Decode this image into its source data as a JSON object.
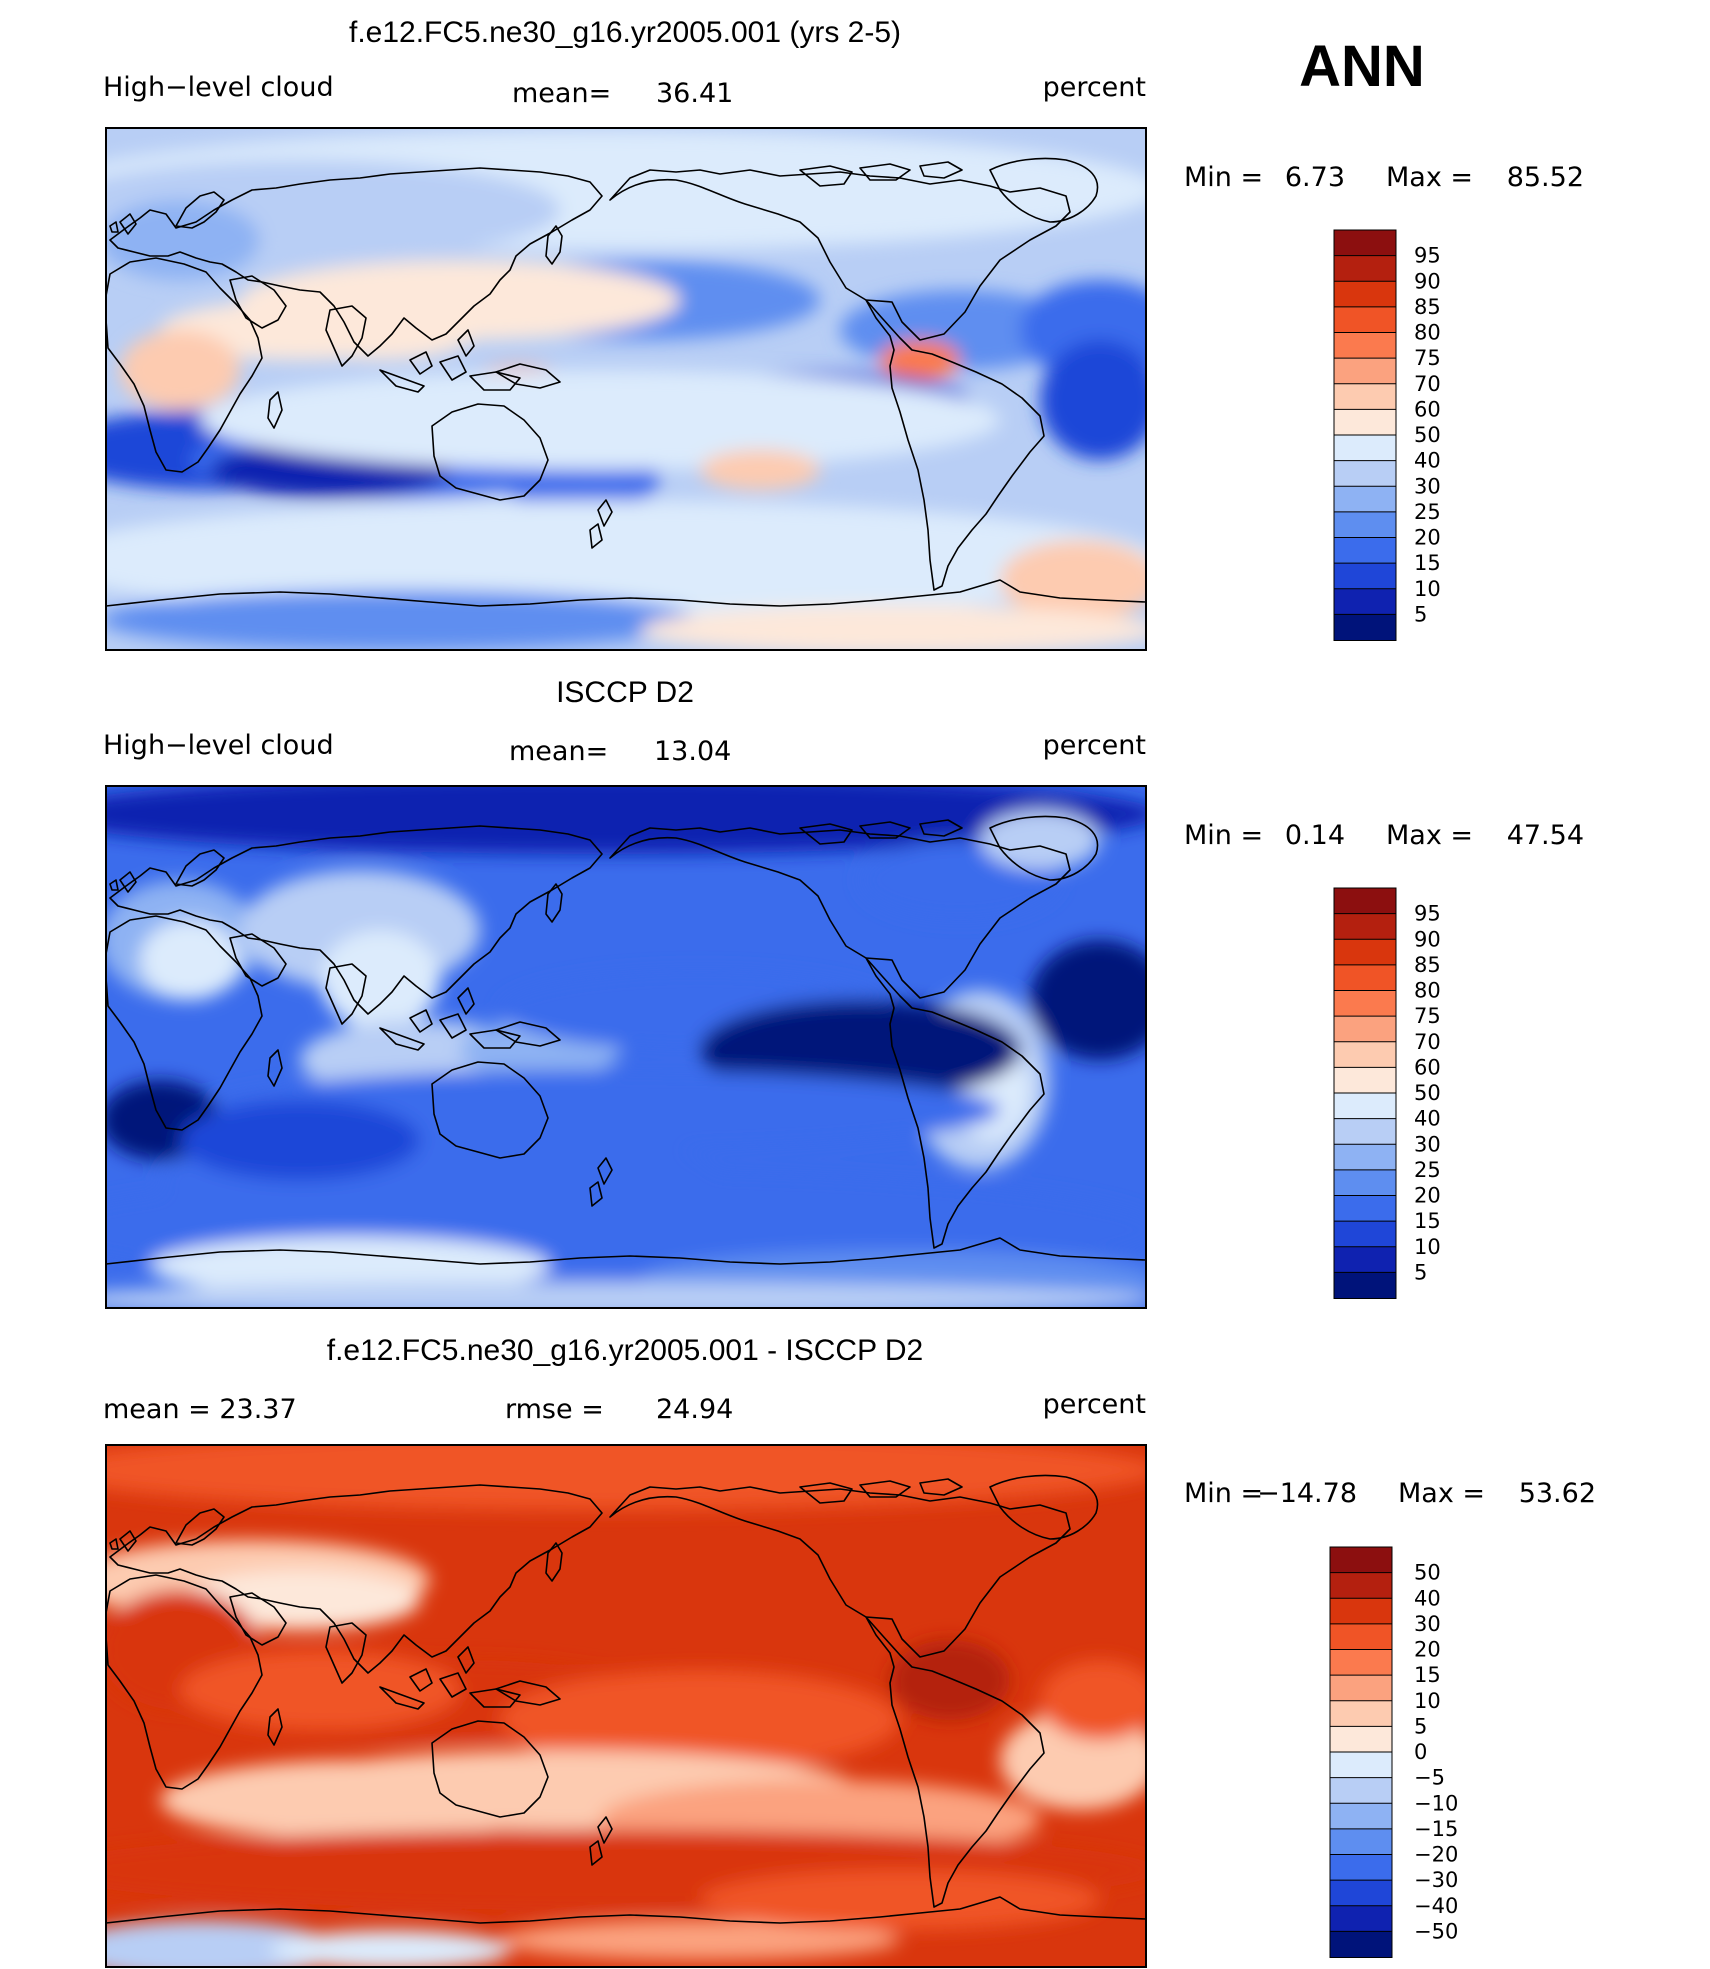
{
  "season": "ANN",
  "colors": {
    "ocean_base": "#b8cef5",
    "coast": "#000000",
    "frame": "#000000"
  },
  "chart_data": [
    {
      "type": "heatmap",
      "title": "f.e12.FC5.ne30_g16.yr2005.001 (yrs 2-5)",
      "variable": "High−level cloud",
      "stat_left": "",
      "mean_label": "mean=",
      "mean_value": "36.41",
      "units": "percent",
      "minmax": {
        "min_label": "Min  =",
        "min": "6.73",
        "max_label": "Max  =",
        "max": "85.52"
      },
      "levels": [
        "95",
        "90",
        "85",
        "80",
        "75",
        "70",
        "60",
        "50",
        "40",
        "30",
        "25",
        "20",
        "15",
        "10",
        "5"
      ],
      "colors": [
        "#8c0f0f",
        "#b4200f",
        "#d9360d",
        "#f05426",
        "#fb7a4e",
        "#fba27f",
        "#fdcbb0",
        "#fde8da",
        "#dcebfc",
        "#b8cef5",
        "#8eb2f3",
        "#5e8ef0",
        "#3b6cec",
        "#1f46d8",
        "#0f22b0",
        "#00137a"
      ],
      "field_base_index": 9
    },
    {
      "type": "heatmap",
      "title": "ISCCP D2",
      "variable": "High−level cloud",
      "stat_left": "",
      "mean_label": "mean=",
      "mean_value": "13.04",
      "units": "percent",
      "minmax": {
        "min_label": "Min  =",
        "min": "0.14",
        "max_label": "Max  =",
        "max": "47.54"
      },
      "levels": [
        "95",
        "90",
        "85",
        "80",
        "75",
        "70",
        "60",
        "50",
        "40",
        "30",
        "25",
        "20",
        "15",
        "10",
        "5"
      ],
      "colors": [
        "#8c0f0f",
        "#b4200f",
        "#d9360d",
        "#f05426",
        "#fb7a4e",
        "#fba27f",
        "#fdcbb0",
        "#fde8da",
        "#dcebfc",
        "#b8cef5",
        "#8eb2f3",
        "#5e8ef0",
        "#3b6cec",
        "#1f46d8",
        "#0f22b0",
        "#00137a"
      ],
      "field_base_index": 13
    },
    {
      "type": "heatmap",
      "title": "f.e12.FC5.ne30_g16.yr2005.001 - ISCCP D2",
      "variable": "",
      "stat_left": "mean  =   23.37",
      "mean_label": "rmse  =",
      "mean_value": "24.94",
      "units": "percent",
      "minmax": {
        "min_label": "Min  =",
        "min": "−14.78",
        "max_label": "Max  =",
        "max": "53.62"
      },
      "levels": [
        "50",
        "40",
        "30",
        "20",
        "15",
        "10",
        "5",
        "0",
        "−5",
        "−10",
        "−15",
        "−20",
        "−30",
        "−40",
        "−50"
      ],
      "colors": [
        "#8c0f0f",
        "#b4200f",
        "#d9360d",
        "#f05426",
        "#fb7a4e",
        "#fba27f",
        "#fdcbb0",
        "#fde8da",
        "#dcebfc",
        "#b8cef5",
        "#8eb2f3",
        "#5e8ef0",
        "#3b6cec",
        "#1f46d8",
        "#0f22b0",
        "#00137a"
      ],
      "field_base_index": 2
    }
  ]
}
